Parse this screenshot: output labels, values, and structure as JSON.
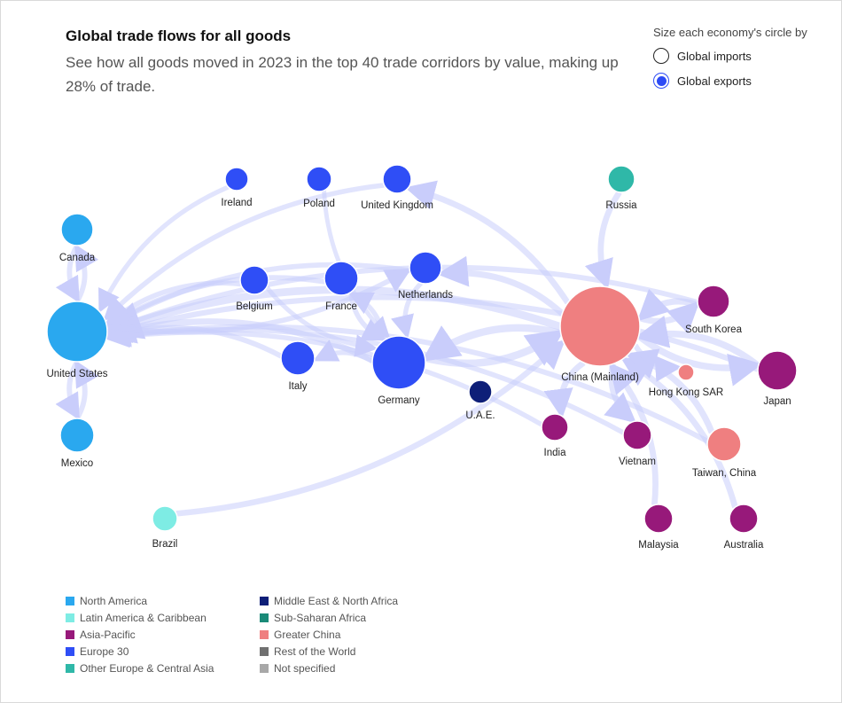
{
  "header": {
    "title": "Global trade flows for all goods",
    "subtitle": "See how all goods moved in 2023 in the top 40 trade corridors by value, making up 28% of trade."
  },
  "size_by": {
    "label": "Size each economy's circle by",
    "options": [
      {
        "label": "Global imports",
        "selected": false
      },
      {
        "label": "Global exports",
        "selected": true
      }
    ]
  },
  "regions": [
    {
      "name": "North America",
      "color": "#2aa8ef"
    },
    {
      "name": "Latin America & Caribbean",
      "color": "#7eece4"
    },
    {
      "name": "Asia-Pacific",
      "color": "#97197a"
    },
    {
      "name": "Europe 30",
      "color": "#2f4ef6"
    },
    {
      "name": "Other Europe & Central Asia",
      "color": "#2fb8a8"
    },
    {
      "name": "Middle East & North Africa",
      "color": "#0e1f78"
    },
    {
      "name": "Sub-Saharan Africa",
      "color": "#1a8a78"
    },
    {
      "name": "Greater China",
      "color": "#ef7f80"
    },
    {
      "name": "Rest of the World",
      "color": "#707070"
    },
    {
      "name": "Not specified",
      "color": "#a8a8a8"
    }
  ],
  "flow_color": "#c9cdfb",
  "economies": [
    {
      "name": "Ireland",
      "region": 3
    },
    {
      "name": "Poland",
      "region": 3
    },
    {
      "name": "United Kingdom",
      "region": 3
    },
    {
      "name": "Russia",
      "region": 4
    },
    {
      "name": "Canada",
      "region": 0
    },
    {
      "name": "United States",
      "region": 0
    },
    {
      "name": "Belgium",
      "region": 3
    },
    {
      "name": "France",
      "region": 3
    },
    {
      "name": "Netherlands",
      "region": 3
    },
    {
      "name": "China (Mainland)",
      "region": 7
    },
    {
      "name": "South Korea",
      "region": 2
    },
    {
      "name": "Japan",
      "region": 2
    },
    {
      "name": "Hong Kong SAR",
      "region": 7
    },
    {
      "name": "Italy",
      "region": 3
    },
    {
      "name": "Germany",
      "region": 3
    },
    {
      "name": "U.A.E.",
      "region": 5
    },
    {
      "name": "India",
      "region": 2
    },
    {
      "name": "Vietnam",
      "region": 2
    },
    {
      "name": "Taiwan, China",
      "region": 7
    },
    {
      "name": "Mexico",
      "region": 0
    },
    {
      "name": "Brazil",
      "region": 1
    },
    {
      "name": "Malaysia",
      "region": 2
    },
    {
      "name": "Australia",
      "region": 2
    }
  ],
  "flows": [
    [
      "China (Mainland)",
      "United States"
    ],
    [
      "Mexico",
      "United States"
    ],
    [
      "Canada",
      "United States"
    ],
    [
      "United States",
      "Canada"
    ],
    [
      "United States",
      "Mexico"
    ],
    [
      "Germany",
      "United States"
    ],
    [
      "Ireland",
      "United States"
    ],
    [
      "Italy",
      "United States"
    ],
    [
      "France",
      "United States"
    ],
    [
      "Netherlands",
      "United States"
    ],
    [
      "Belgium",
      "United States"
    ],
    [
      "United Kingdom",
      "United States"
    ],
    [
      "Japan",
      "United States"
    ],
    [
      "South Korea",
      "United States"
    ],
    [
      "Vietnam",
      "United States"
    ],
    [
      "Taiwan, China",
      "United States"
    ],
    [
      "India",
      "United States"
    ],
    [
      "Brazil",
      "China (Mainland)"
    ],
    [
      "Australia",
      "China (Mainland)"
    ],
    [
      "Russia",
      "China (Mainland)"
    ],
    [
      "China (Mainland)",
      "Japan"
    ],
    [
      "China (Mainland)",
      "South Korea"
    ],
    [
      "South Korea",
      "China (Mainland)"
    ],
    [
      "Japan",
      "China (Mainland)"
    ],
    [
      "Taiwan, China",
      "China (Mainland)"
    ],
    [
      "China (Mainland)",
      "Hong Kong SAR"
    ],
    [
      "Malaysia",
      "China (Mainland)"
    ],
    [
      "China (Mainland)",
      "Vietnam"
    ],
    [
      "China (Mainland)",
      "India"
    ],
    [
      "China (Mainland)",
      "Germany"
    ],
    [
      "Germany",
      "China (Mainland)"
    ],
    [
      "China (Mainland)",
      "Netherlands"
    ],
    [
      "China (Mainland)",
      "United Kingdom"
    ],
    [
      "Germany",
      "France"
    ],
    [
      "France",
      "Germany"
    ],
    [
      "Netherlands",
      "Germany"
    ],
    [
      "Poland",
      "Germany"
    ],
    [
      "Germany",
      "Italy"
    ],
    [
      "Belgium",
      "Germany"
    ],
    [
      "United States",
      "Netherlands"
    ]
  ]
}
